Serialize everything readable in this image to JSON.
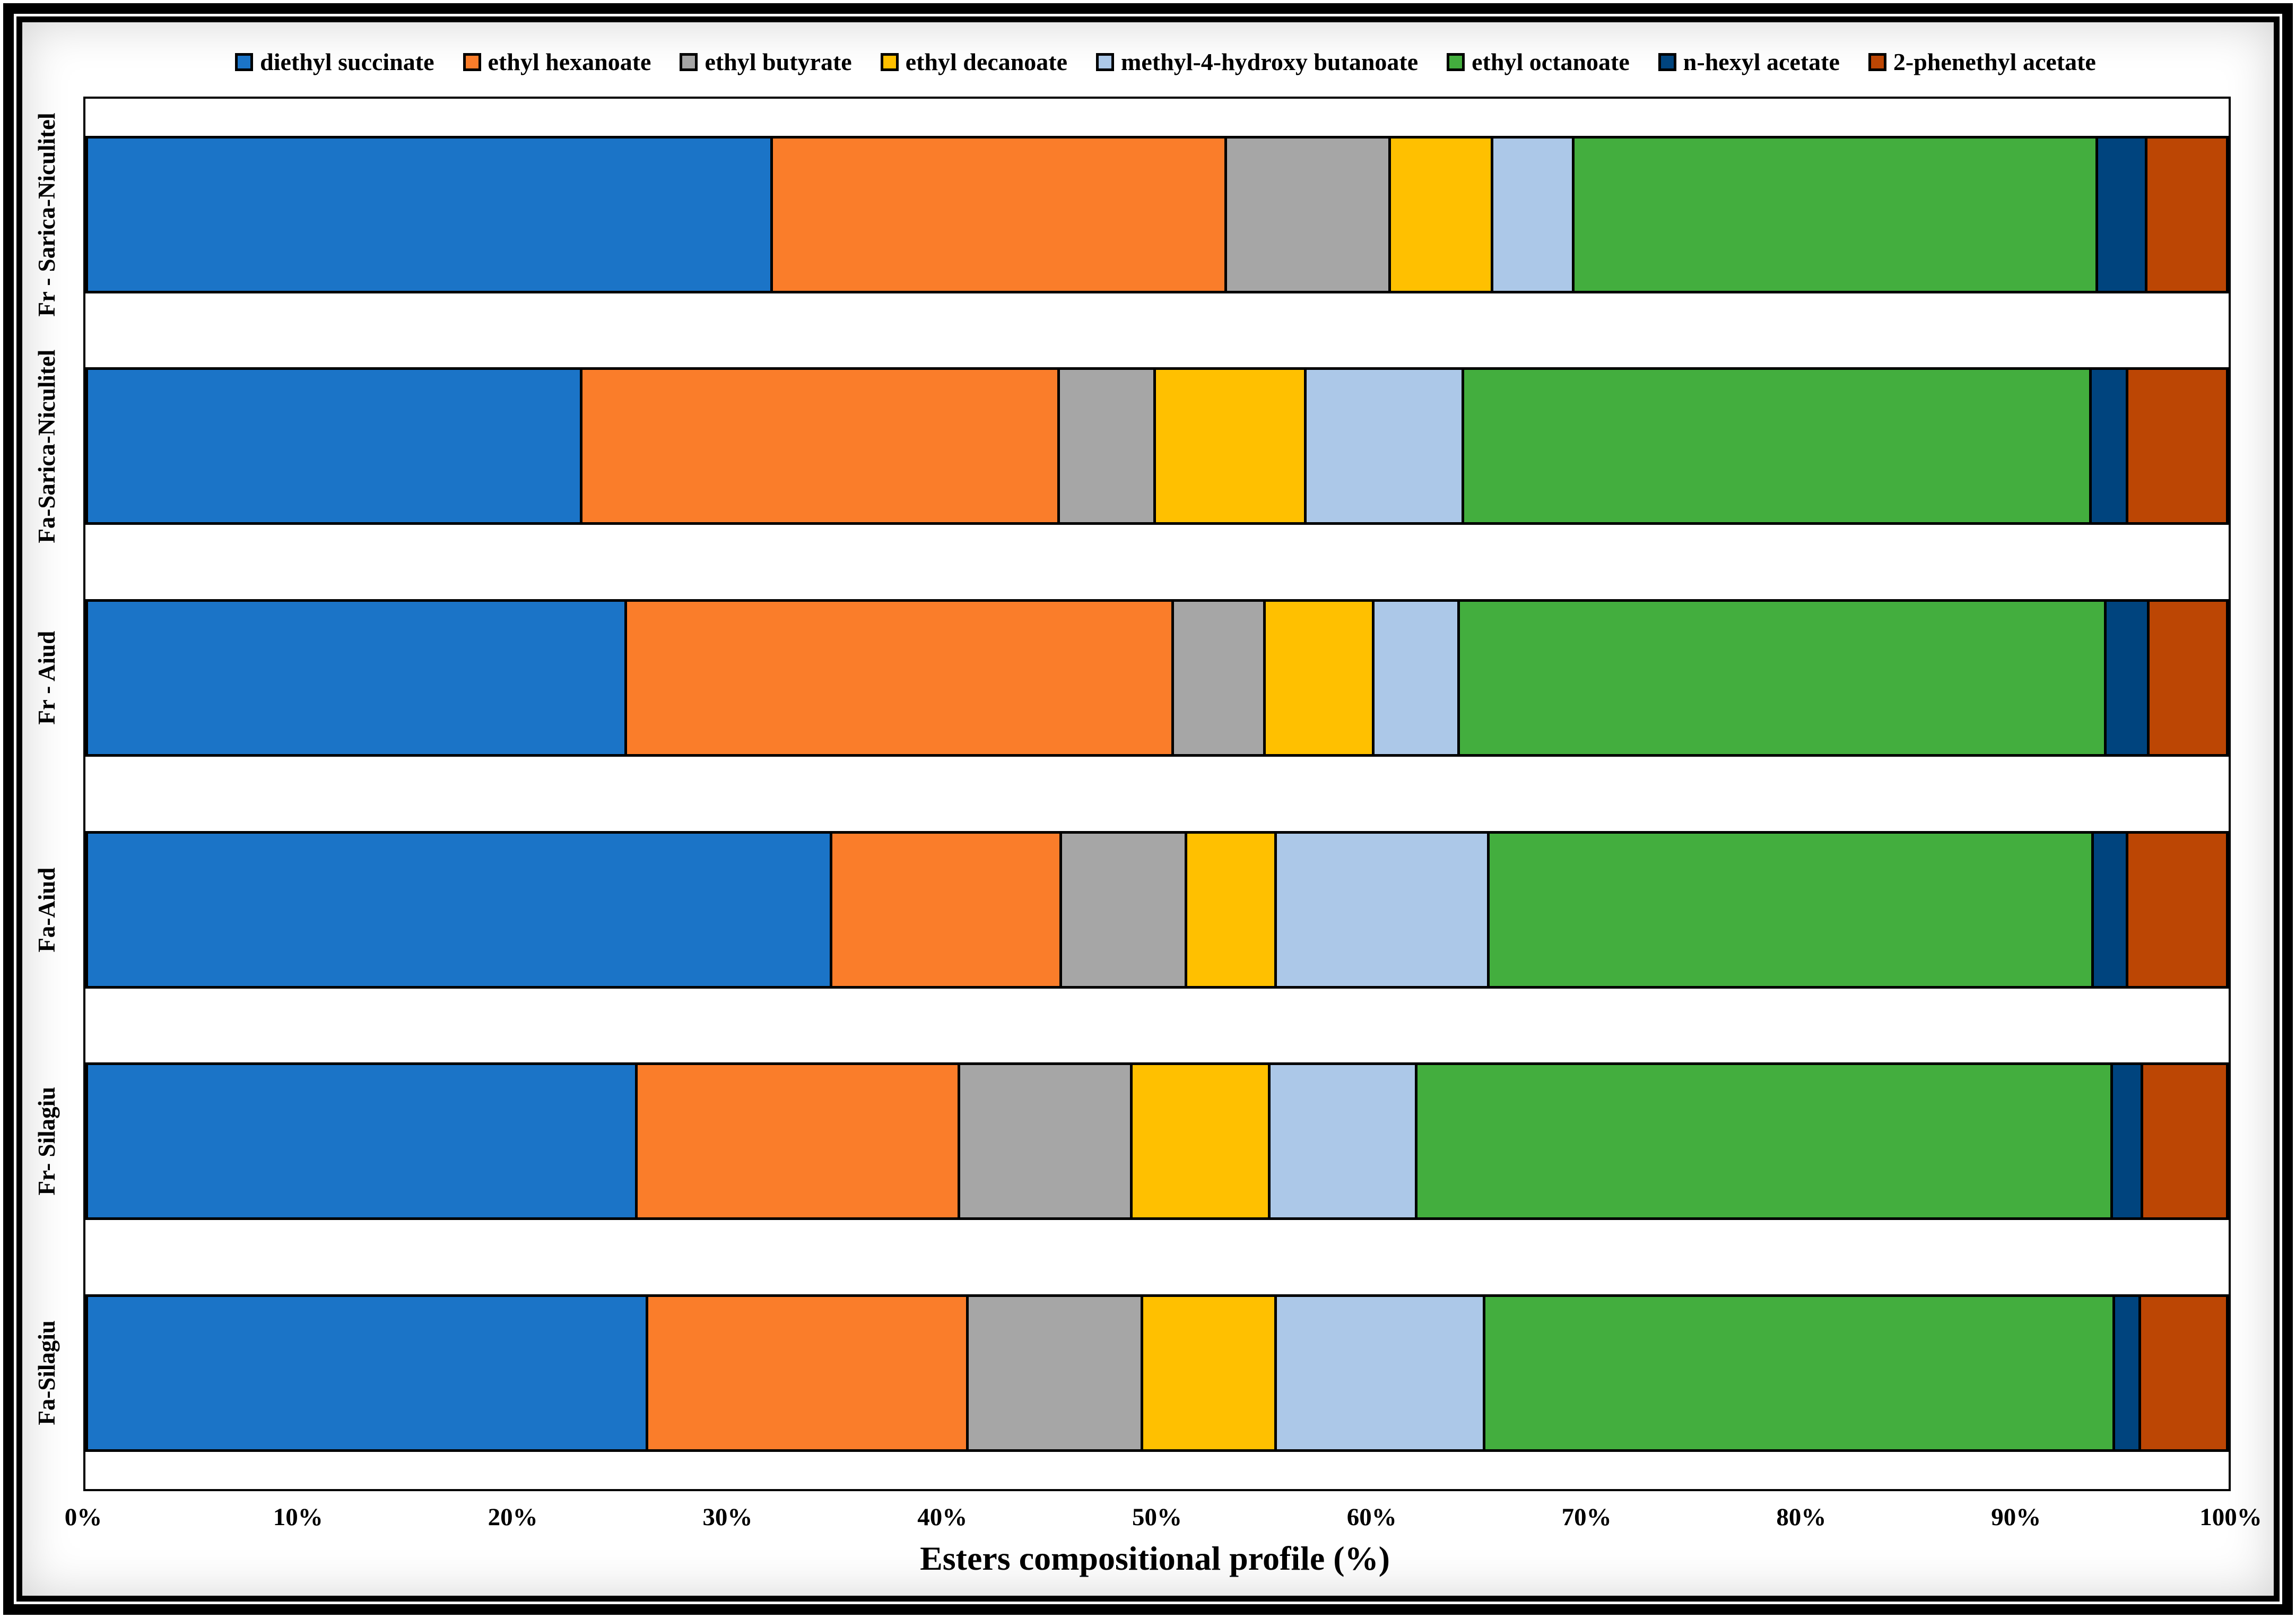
{
  "chart_data": {
    "type": "bar",
    "orientation": "horizontal",
    "stacked": true,
    "grid": false,
    "legend_position": "top",
    "xlabel": "Esters compositional profile (%)",
    "xlim": [
      0,
      100
    ],
    "x_ticks": [
      "0%",
      "10%",
      "20%",
      "30%",
      "40%",
      "50%",
      "60%",
      "70%",
      "80%",
      "90%",
      "100%"
    ],
    "categories": [
      "Fr - Sarica-Niculitel",
      "Fa-Sarica-Niculitel",
      "Fr - Aiud",
      "Fa-Aiud",
      "Fr- Silagiu",
      "Fa-Silagiu"
    ],
    "series": [
      {
        "name": "diethyl succinate",
        "color": "#1B74C7",
        "values": [
          32.2,
          23.2,
          25.3,
          35.0,
          25.8,
          26.3
        ]
      },
      {
        "name": "ethyl hexanoate",
        "color": "#FA7D2A",
        "values": [
          21.3,
          22.4,
          25.7,
          10.7,
          15.1,
          15.0
        ]
      },
      {
        "name": "ethyl butyrate",
        "color": "#A6A6A6",
        "values": [
          7.6,
          4.4,
          4.2,
          5.8,
          8.0,
          8.1
        ]
      },
      {
        "name": "ethyl decanoate",
        "color": "#FFC000",
        "values": [
          4.7,
          7.0,
          5.0,
          4.1,
          6.4,
          6.2
        ]
      },
      {
        "name": "methyl-4-hydroxy butanoate",
        "color": "#ACC8E8",
        "values": [
          3.7,
          7.3,
          3.9,
          9.9,
          6.8,
          9.7
        ]
      },
      {
        "name": "ethyl octanoate",
        "color": "#43AE3E",
        "values": [
          24.6,
          29.5,
          30.4,
          28.4,
          32.7,
          29.6
        ]
      },
      {
        "name": "n-hexyl acetate",
        "color": "#00447E",
        "values": [
          2.2,
          1.6,
          1.9,
          1.5,
          1.3,
          1.1
        ]
      },
      {
        "name": "2-phenethyl acetate",
        "color": "#BC4604",
        "values": [
          3.7,
          4.6,
          3.6,
          4.6,
          3.9,
          4.0
        ]
      }
    ]
  }
}
